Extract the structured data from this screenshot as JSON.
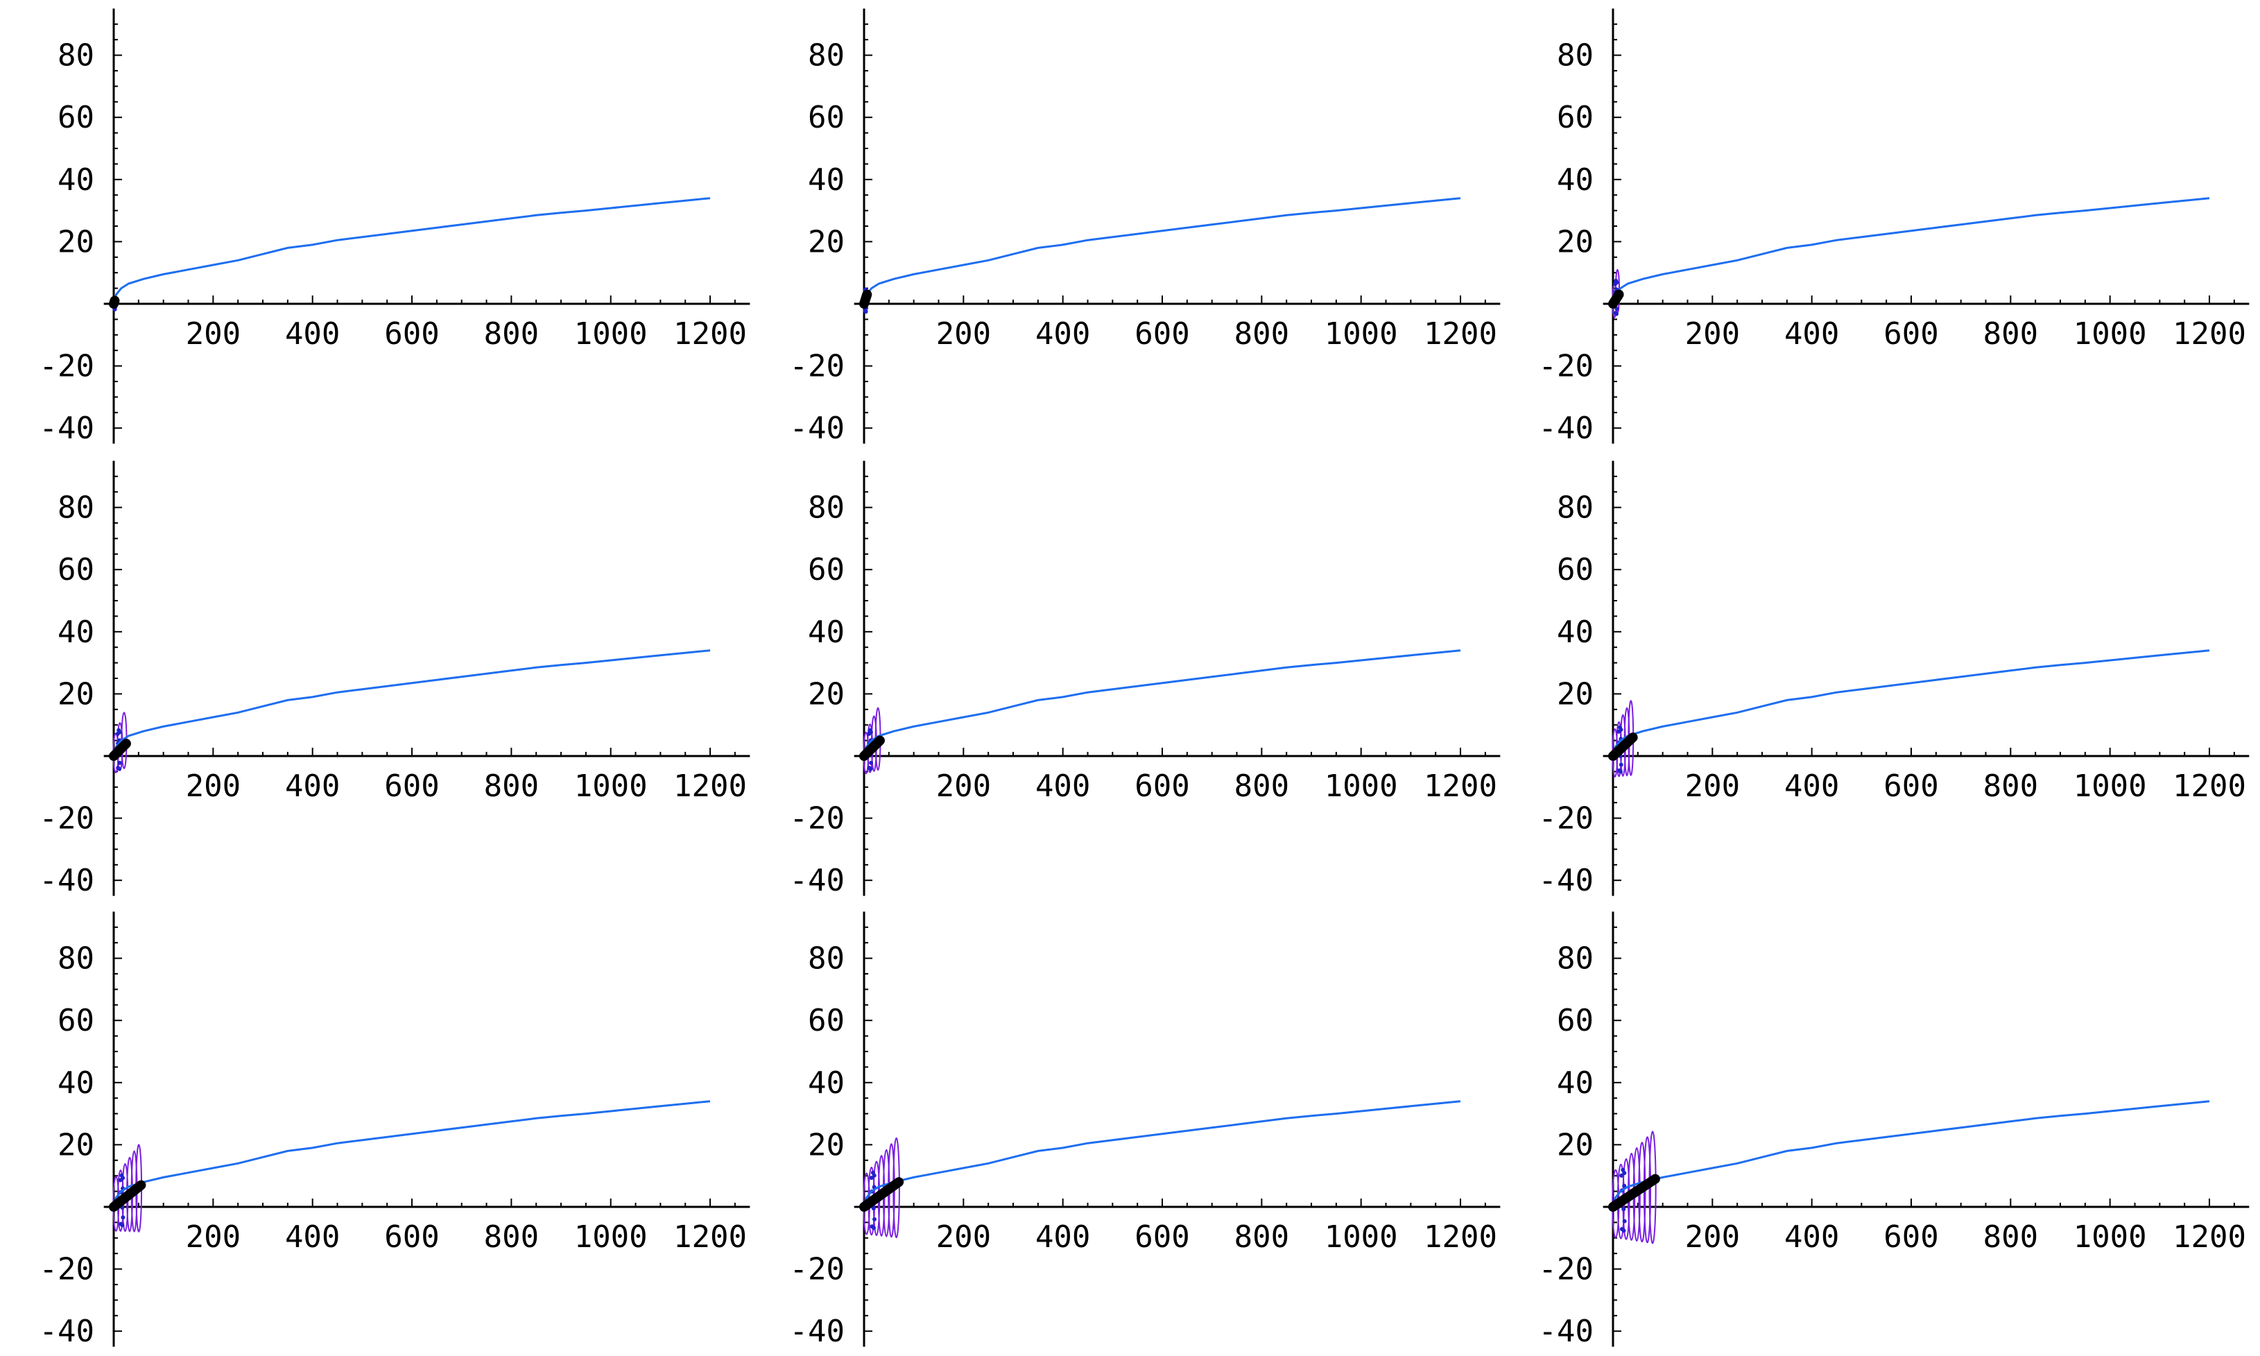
{
  "chart_data": [
    {
      "type": "line",
      "title": "",
      "xlabel": "",
      "ylabel": "",
      "xlim": [
        0,
        1280
      ],
      "ylim": [
        -45,
        95
      ],
      "x_ticks": [
        "200",
        "400",
        "600",
        "800",
        "1000",
        "1200"
      ],
      "y_ticks": [
        "80",
        "60",
        "40",
        "20",
        "-20",
        "-40"
      ],
      "grid": false,
      "series": [
        {
          "color": "#1e6ef0",
          "x": [
            0,
            5,
            15,
            30,
            60,
            100,
            150,
            200,
            250,
            300,
            350,
            400,
            450,
            500,
            550,
            600,
            650,
            700,
            750,
            800,
            850,
            900,
            950,
            1000,
            1050,
            1100,
            1150,
            1200
          ],
          "y": [
            0,
            3,
            5,
            6.5,
            8,
            9.5,
            11,
            12.5,
            14,
            16,
            18,
            19,
            20.5,
            21.5,
            22.5,
            23.5,
            24.5,
            25.5,
            26.5,
            27.5,
            28.5,
            29.3,
            30,
            30.8,
            31.6,
            32.4,
            33.2,
            34
          ]
        }
      ],
      "scatter_blob": {
        "color": "#2222cc",
        "x_center": 2,
        "y_center": 0,
        "spread": 2
      },
      "black_band": {
        "x_start": 0,
        "x_end": 2,
        "y_start": 0,
        "y_end": 1
      },
      "purple_loops": {
        "count": 0,
        "x_max": 0,
        "amplitude": 0
      }
    },
    {
      "type": "line",
      "title": "",
      "xlabel": "",
      "ylabel": "",
      "xlim": [
        0,
        1280
      ],
      "ylim": [
        -45,
        95
      ],
      "x_ticks": [
        "200",
        "400",
        "600",
        "800",
        "1000",
        "1200"
      ],
      "y_ticks": [
        "80",
        "60",
        "40",
        "20",
        "-20",
        "-40"
      ],
      "grid": false,
      "series": [
        {
          "color": "#1e6ef0",
          "x": [
            0,
            5,
            15,
            30,
            60,
            100,
            150,
            200,
            250,
            300,
            350,
            400,
            450,
            500,
            550,
            600,
            650,
            700,
            750,
            800,
            850,
            900,
            950,
            1000,
            1050,
            1100,
            1150,
            1200
          ],
          "y": [
            0,
            3,
            5,
            6.5,
            8,
            9.5,
            11,
            12.5,
            14,
            16,
            18,
            19,
            20.5,
            21.5,
            22.5,
            23.5,
            24.5,
            25.5,
            26.5,
            27.5,
            28.5,
            29.3,
            30,
            30.8,
            31.6,
            32.4,
            33.2,
            34
          ]
        }
      ],
      "scatter_blob": {
        "color": "#2222cc",
        "x_center": 3,
        "y_center": 1,
        "spread": 4
      },
      "black_band": {
        "x_start": 0,
        "x_end": 6,
        "y_start": 0,
        "y_end": 3
      },
      "purple_loops": {
        "count": 0,
        "x_max": 0,
        "amplitude": 0
      }
    },
    {
      "type": "line",
      "title": "",
      "xlabel": "",
      "ylabel": "",
      "xlim": [
        0,
        1280
      ],
      "ylim": [
        -45,
        95
      ],
      "x_ticks": [
        "200",
        "400",
        "600",
        "800",
        "1000",
        "1200"
      ],
      "y_ticks": [
        "80",
        "60",
        "40",
        "20",
        "-20",
        "-40"
      ],
      "grid": false,
      "series": [
        {
          "color": "#1e6ef0",
          "x": [
            0,
            5,
            15,
            30,
            60,
            100,
            150,
            200,
            250,
            300,
            350,
            400,
            450,
            500,
            550,
            600,
            650,
            700,
            750,
            800,
            850,
            900,
            950,
            1000,
            1050,
            1100,
            1150,
            1200
          ],
          "y": [
            0,
            3,
            5,
            6.5,
            8,
            9.5,
            11,
            12.5,
            14,
            16,
            18,
            19,
            20.5,
            21.5,
            22.5,
            23.5,
            24.5,
            25.5,
            26.5,
            27.5,
            28.5,
            29.3,
            30,
            30.8,
            31.6,
            32.4,
            33.2,
            34
          ]
        }
      ],
      "scatter_blob": {
        "color": "#2222cc",
        "x_center": 6,
        "y_center": 2,
        "spread": 6
      },
      "black_band": {
        "x_start": 0,
        "x_end": 12,
        "y_start": 0,
        "y_end": 3
      },
      "purple_loops": {
        "count": 2,
        "x_max": 12,
        "amplitude": 7
      }
    },
    {
      "type": "line",
      "title": "",
      "xlabel": "",
      "ylabel": "",
      "xlim": [
        0,
        1280
      ],
      "ylim": [
        -45,
        95
      ],
      "x_ticks": [
        "200",
        "400",
        "600",
        "800",
        "1000",
        "1200"
      ],
      "y_ticks": [
        "80",
        "60",
        "40",
        "20",
        "-20",
        "-40"
      ],
      "grid": false,
      "series": [
        {
          "color": "#1e6ef0",
          "x": [
            0,
            5,
            15,
            30,
            60,
            100,
            150,
            200,
            250,
            300,
            350,
            400,
            450,
            500,
            550,
            600,
            650,
            700,
            750,
            800,
            850,
            900,
            950,
            1000,
            1050,
            1100,
            1150,
            1200
          ],
          "y": [
            0,
            3,
            5,
            6.5,
            8,
            9.5,
            11,
            12.5,
            14,
            16,
            18,
            19,
            20.5,
            21.5,
            22.5,
            23.5,
            24.5,
            25.5,
            26.5,
            27.5,
            28.5,
            29.3,
            30,
            30.8,
            31.6,
            32.4,
            33.2,
            34
          ]
        }
      ],
      "scatter_blob": {
        "color": "#2222cc",
        "x_center": 10,
        "y_center": 2,
        "spread": 7
      },
      "black_band": {
        "x_start": 0,
        "x_end": 25,
        "y_start": 0,
        "y_end": 4
      },
      "purple_loops": {
        "count": 3,
        "x_max": 25,
        "amplitude": 9
      }
    },
    {
      "type": "line",
      "title": "",
      "xlabel": "",
      "ylabel": "",
      "xlim": [
        0,
        1280
      ],
      "ylim": [
        -45,
        95
      ],
      "x_ticks": [
        "200",
        "400",
        "600",
        "800",
        "1000",
        "1200"
      ],
      "y_ticks": [
        "80",
        "60",
        "40",
        "20",
        "-20",
        "-40"
      ],
      "grid": false,
      "series": [
        {
          "color": "#1e6ef0",
          "x": [
            0,
            5,
            15,
            30,
            60,
            100,
            150,
            200,
            250,
            300,
            350,
            400,
            450,
            500,
            550,
            600,
            650,
            700,
            750,
            800,
            850,
            900,
            950,
            1000,
            1050,
            1100,
            1150,
            1200
          ],
          "y": [
            0,
            3,
            5,
            6.5,
            8,
            9.5,
            11,
            12.5,
            14,
            16,
            18,
            19,
            20.5,
            21.5,
            22.5,
            23.5,
            24.5,
            25.5,
            26.5,
            27.5,
            28.5,
            29.3,
            30,
            30.8,
            31.6,
            32.4,
            33.2,
            34
          ]
        }
      ],
      "scatter_blob": {
        "color": "#2222cc",
        "x_center": 12,
        "y_center": 2,
        "spread": 7
      },
      "black_band": {
        "x_start": 0,
        "x_end": 32,
        "y_start": 0,
        "y_end": 5
      },
      "purple_loops": {
        "count": 4,
        "x_max": 32,
        "amplitude": 10
      }
    },
    {
      "type": "line",
      "title": "",
      "xlabel": "",
      "ylabel": "",
      "xlim": [
        0,
        1280
      ],
      "ylim": [
        -45,
        95
      ],
      "x_ticks": [
        "200",
        "400",
        "600",
        "800",
        "1000",
        "1200"
      ],
      "y_ticks": [
        "80",
        "60",
        "40",
        "20",
        "-20",
        "-40"
      ],
      "grid": false,
      "series": [
        {
          "color": "#1e6ef0",
          "x": [
            0,
            5,
            15,
            30,
            60,
            100,
            150,
            200,
            250,
            300,
            350,
            400,
            450,
            500,
            550,
            600,
            650,
            700,
            750,
            800,
            850,
            900,
            950,
            1000,
            1050,
            1100,
            1150,
            1200
          ],
          "y": [
            0,
            3,
            5,
            6.5,
            8,
            9.5,
            11,
            12.5,
            14,
            16,
            18,
            19,
            20.5,
            21.5,
            22.5,
            23.5,
            24.5,
            25.5,
            26.5,
            27.5,
            28.5,
            29.3,
            30,
            30.8,
            31.6,
            32.4,
            33.2,
            34
          ]
        }
      ],
      "scatter_blob": {
        "color": "#2222cc",
        "x_center": 14,
        "y_center": 2,
        "spread": 8
      },
      "black_band": {
        "x_start": 0,
        "x_end": 40,
        "y_start": 0,
        "y_end": 6
      },
      "purple_loops": {
        "count": 5,
        "x_max": 40,
        "amplitude": 12
      }
    },
    {
      "type": "line",
      "title": "",
      "xlabel": "",
      "ylabel": "",
      "xlim": [
        0,
        1280
      ],
      "ylim": [
        -45,
        95
      ],
      "x_ticks": [
        "200",
        "400",
        "600",
        "800",
        "1000",
        "1200"
      ],
      "y_ticks": [
        "80",
        "60",
        "40",
        "20",
        "-20",
        "-40"
      ],
      "grid": false,
      "series": [
        {
          "color": "#1e6ef0",
          "x": [
            0,
            5,
            15,
            30,
            60,
            100,
            150,
            200,
            250,
            300,
            350,
            400,
            450,
            500,
            550,
            600,
            650,
            700,
            750,
            800,
            850,
            900,
            950,
            1000,
            1050,
            1100,
            1150,
            1200
          ],
          "y": [
            0,
            3,
            5,
            6.5,
            8,
            9.5,
            11,
            12.5,
            14,
            16,
            18,
            19,
            20.5,
            21.5,
            22.5,
            23.5,
            24.5,
            25.5,
            26.5,
            27.5,
            28.5,
            29.3,
            30,
            30.8,
            31.6,
            32.4,
            33.2,
            34
          ]
        }
      ],
      "scatter_blob": {
        "color": "#2222cc",
        "x_center": 16,
        "y_center": 2,
        "spread": 9
      },
      "black_band": {
        "x_start": 0,
        "x_end": 55,
        "y_start": 0,
        "y_end": 7
      },
      "purple_loops": {
        "count": 6,
        "x_max": 55,
        "amplitude": 14
      }
    },
    {
      "type": "line",
      "title": "",
      "xlabel": "",
      "ylabel": "",
      "xlim": [
        0,
        1280
      ],
      "ylim": [
        -45,
        95
      ],
      "x_ticks": [
        "200",
        "400",
        "600",
        "800",
        "1000",
        "1200"
      ],
      "y_ticks": [
        "80",
        "60",
        "40",
        "20",
        "-20",
        "-40"
      ],
      "grid": false,
      "series": [
        {
          "color": "#1e6ef0",
          "x": [
            0,
            5,
            15,
            30,
            60,
            100,
            150,
            200,
            250,
            300,
            350,
            400,
            450,
            500,
            550,
            600,
            650,
            700,
            750,
            800,
            850,
            900,
            950,
            1000,
            1050,
            1100,
            1150,
            1200
          ],
          "y": [
            0,
            3,
            5,
            6.5,
            8,
            9.5,
            11,
            12.5,
            14,
            16,
            18,
            19,
            20.5,
            21.5,
            22.5,
            23.5,
            24.5,
            25.5,
            26.5,
            27.5,
            28.5,
            29.3,
            30,
            30.8,
            31.6,
            32.4,
            33.2,
            34
          ]
        }
      ],
      "scatter_blob": {
        "color": "#2222cc",
        "x_center": 18,
        "y_center": 2,
        "spread": 10
      },
      "black_band": {
        "x_start": 0,
        "x_end": 70,
        "y_start": 0,
        "y_end": 8
      },
      "purple_loops": {
        "count": 7,
        "x_max": 70,
        "amplitude": 16
      }
    },
    {
      "type": "line",
      "title": "",
      "xlabel": "",
      "ylabel": "",
      "xlim": [
        0,
        1280
      ],
      "ylim": [
        -45,
        95
      ],
      "x_ticks": [
        "200",
        "400",
        "600",
        "800",
        "1000",
        "1200"
      ],
      "y_ticks": [
        "80",
        "60",
        "40",
        "20",
        "-20",
        "-40"
      ],
      "grid": false,
      "series": [
        {
          "color": "#1e6ef0",
          "x": [
            0,
            5,
            15,
            30,
            60,
            100,
            150,
            200,
            250,
            300,
            350,
            400,
            450,
            500,
            550,
            600,
            650,
            700,
            750,
            800,
            850,
            900,
            950,
            1000,
            1050,
            1100,
            1150,
            1200
          ],
          "y": [
            0,
            3,
            5,
            6.5,
            8,
            9.5,
            11,
            12.5,
            14,
            16,
            18,
            19,
            20.5,
            21.5,
            22.5,
            23.5,
            24.5,
            25.5,
            26.5,
            27.5,
            28.5,
            29.3,
            30,
            30.8,
            31.6,
            32.4,
            33.2,
            34
          ]
        }
      ],
      "scatter_blob": {
        "color": "#2222cc",
        "x_center": 20,
        "y_center": 2,
        "spread": 11
      },
      "black_band": {
        "x_start": 0,
        "x_end": 85,
        "y_start": 0,
        "y_end": 9
      },
      "purple_loops": {
        "count": 8,
        "x_max": 85,
        "amplitude": 18
      }
    }
  ],
  "colors": {
    "axis": "#000000",
    "curve": "#1e6ef0",
    "purple": "#7a1fe0",
    "blue_blob": "#2222cc",
    "band": "#000000"
  }
}
